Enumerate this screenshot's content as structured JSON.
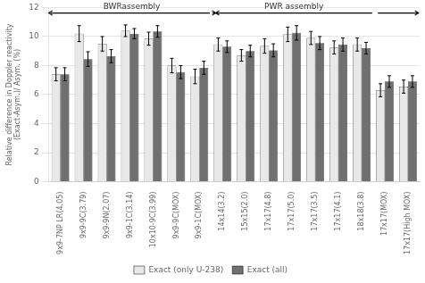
{
  "chart_data": {
    "type": "bar",
    "categories": [
      "9x9-7NP LR(4.05)",
      "9x9-9C(3.79)",
      "9x9-9N(2.07)",
      "9x9-1C(3.14)",
      "10x10-9C(3.99)",
      "9x9-9C(MOX)",
      "9x9-1C(MOX)",
      "14x14(3.2)",
      "15x15(2.0)",
      "17x17(4.8)",
      "17x17(5.0)",
      "17x17(3.5)",
      "17x17(4.1)",
      "18x18(3.8)",
      "17x17(MOX)",
      "17x17(High MOX)"
    ],
    "series": [
      {
        "name": "Exact (only U-238)",
        "color": "#e8e8e8",
        "values": [
          7.4,
          10.2,
          9.5,
          10.4,
          9.85,
          8.0,
          7.25,
          9.45,
          8.7,
          9.35,
          10.15,
          9.9,
          9.25,
          9.45,
          6.3,
          6.55
        ],
        "errors": [
          0.45,
          0.55,
          0.5,
          0.4,
          0.45,
          0.5,
          0.5,
          0.45,
          0.4,
          0.5,
          0.5,
          0.45,
          0.45,
          0.45,
          0.45,
          0.45
        ]
      },
      {
        "name": "Exact (all)",
        "color": "#707070",
        "values": [
          7.4,
          8.45,
          8.65,
          10.2,
          10.35,
          7.55,
          7.85,
          9.3,
          9.0,
          9.05,
          10.25,
          9.55,
          9.45,
          9.2,
          6.9,
          6.9
        ],
        "errors": [
          0.45,
          0.5,
          0.45,
          0.35,
          0.4,
          0.45,
          0.45,
          0.4,
          0.4,
          0.45,
          0.5,
          0.45,
          0.45,
          0.4,
          0.4,
          0.4
        ]
      }
    ],
    "ylabel": "Relative difference in Doppler reactivity\n(Exact-Asym.)/ Asym. (%)",
    "ylim": [
      0,
      12
    ],
    "yticks": [
      0,
      2,
      4,
      6,
      8,
      10,
      12
    ],
    "grid": true,
    "legend": "bottom",
    "annotations": [
      {
        "text": "BWRassembly"
      },
      {
        "text": "PWR assembly"
      }
    ]
  }
}
